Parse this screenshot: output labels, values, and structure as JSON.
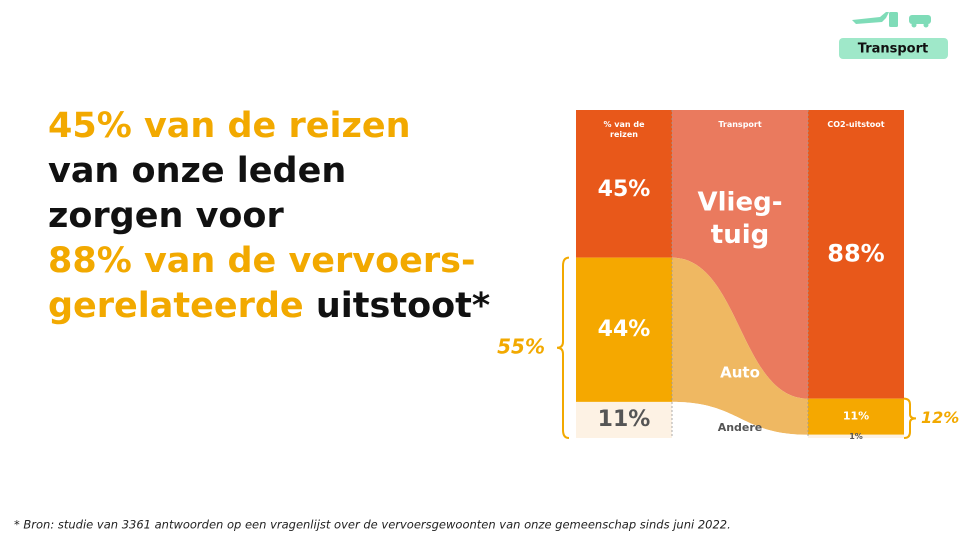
{
  "badge": "Transport",
  "headline": [
    [
      {
        "text": "45% van de reizen",
        "color": "#f2a900"
      }
    ],
    [
      {
        "text": "van onze leden",
        "color": "#111111"
      }
    ],
    [
      {
        "text": "zorgen voor",
        "color": "#111111"
      }
    ],
    [
      {
        "text": "88% van de vervoers-",
        "color": "#f2a900"
      }
    ],
    [
      {
        "text": "gerelateerde",
        "color": "#f2a900"
      },
      {
        "text": " uitstoot*",
        "color": "#111111"
      }
    ]
  ],
  "footnote": "* Bron: studie van 3361 antwoorden op een vragenlijst over de vervoersgewoonten van onze gemeenschap sinds juni 2022.",
  "chart_data": {
    "type": "sankey",
    "columns": [
      "% van de reizen",
      "Transport",
      "CO2-uitstoot"
    ],
    "series": [
      {
        "label_lines": [
          "Vlieg-",
          "tuig"
        ],
        "color": "#e8581a",
        "flow_color": "#ea7a5e",
        "label_color": "#ffffff",
        "left": 45,
        "left_label": "45%",
        "right": 88,
        "right_label": "88%"
      },
      {
        "label_lines": [
          "Auto"
        ],
        "color": "#f5a800",
        "flow_color": "#efb862",
        "label_color": "#ffffff",
        "left": 44,
        "left_label": "44%",
        "right": 11,
        "right_label": "11%"
      },
      {
        "label_lines": [
          "Andere"
        ],
        "color": "#fdf2e4",
        "flow_color": "#ffffff",
        "label_color": "#555555",
        "left": 11,
        "left_label": "11%",
        "right": 1,
        "right_label": "1%"
      }
    ],
    "brackets": [
      {
        "side": "left",
        "value": 55,
        "label": "55%"
      },
      {
        "side": "right",
        "value": 12,
        "label": "12%"
      }
    ]
  }
}
